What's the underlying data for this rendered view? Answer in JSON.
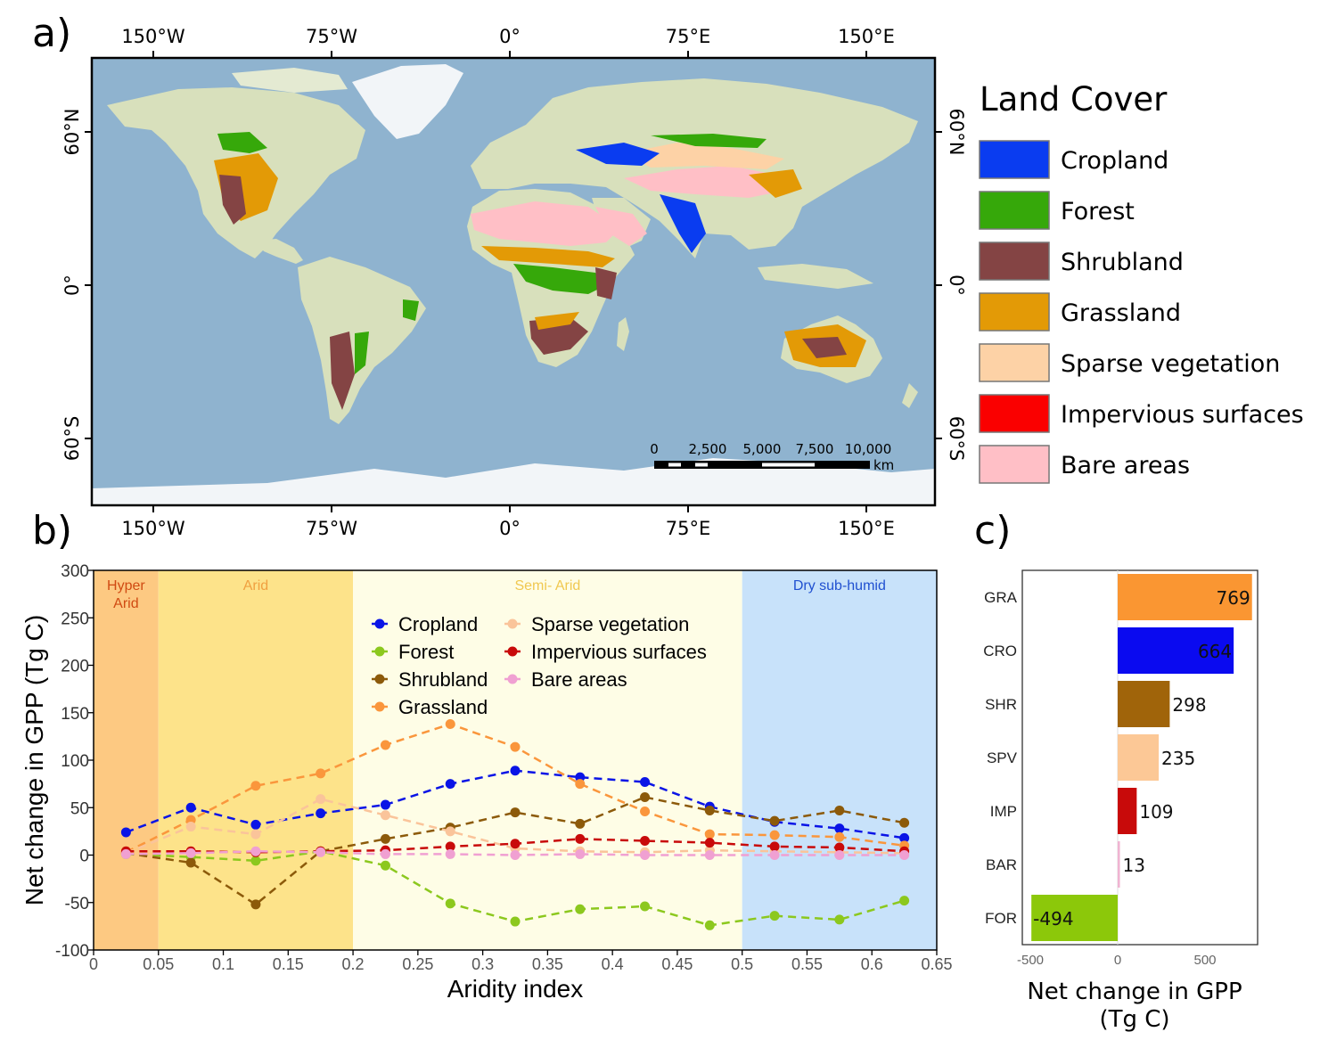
{
  "panel_labels": {
    "a": "a)",
    "b": "b)",
    "c": "c)"
  },
  "map": {
    "lon_ticks": [
      "150°W",
      "75°W",
      "0°",
      "75°E",
      "150°E"
    ],
    "lat_ticks": [
      "60°N",
      "0°",
      "60°S"
    ],
    "scale_bar": {
      "labels": [
        "0",
        "2,500",
        "5,000",
        "7,500",
        "10,000"
      ],
      "unit": "km"
    },
    "legend": {
      "title": "Land Cover",
      "items": [
        {
          "label": "Cropland",
          "color": "#0a3cf0"
        },
        {
          "label": "Forest",
          "color": "#36a80a"
        },
        {
          "label": "Shrubland",
          "color": "#844444"
        },
        {
          "label": "Grassland",
          "color": "#e39a06"
        },
        {
          "label": "Sparse vegetation",
          "color": "#fdd2a6"
        },
        {
          "label": "Impervious surfaces",
          "color": "#fa0000"
        },
        {
          "label": "Bare areas",
          "color": "#ffbfc6"
        }
      ]
    },
    "colors": {
      "ocean": "#8fb3cf",
      "land": "#d8e0bc",
      "ice": "#f2f5f8"
    }
  },
  "chart_data": [
    {
      "type": "line",
      "xlabel": "Aridity index",
      "ylabel": "Net change in GPP (Tg C)",
      "xlim": [
        0,
        0.65
      ],
      "ylim": [
        -100,
        300
      ],
      "xticks": [
        "0",
        "0.05",
        "0.1",
        "0.15",
        "0.2",
        "0.25",
        "0.3",
        "0.35",
        "0.4",
        "0.45",
        "0.5",
        "0.55",
        "0.6",
        "0.65"
      ],
      "yticks": [
        "-100",
        "-50",
        "0",
        "50",
        "100",
        "150",
        "200",
        "250",
        "300"
      ],
      "zones": [
        {
          "label": "Hyper\nArid",
          "lines": [
            "Hyper",
            "Arid"
          ],
          "from": 0,
          "to": 0.05,
          "fill": "#fdc982",
          "text_color": "#d04a12"
        },
        {
          "label": "Arid",
          "lines": [
            "Arid"
          ],
          "from": 0.05,
          "to": 0.2,
          "fill": "#fde38a",
          "text_color": "#f0a040"
        },
        {
          "label": "Semi- Arid",
          "lines": [
            "Semi- Arid"
          ],
          "from": 0.2,
          "to": 0.5,
          "fill": "#fefde6",
          "text_color": "#f0c850"
        },
        {
          "label": "Dry sub-humid",
          "lines": [
            "Dry sub-humid"
          ],
          "from": 0.5,
          "to": 0.65,
          "fill": "#c8e2fa",
          "text_color": "#2050d0"
        }
      ],
      "x": [
        0.025,
        0.075,
        0.125,
        0.175,
        0.225,
        0.275,
        0.325,
        0.375,
        0.425,
        0.475,
        0.525,
        0.575,
        0.625
      ],
      "series": [
        {
          "name": "Cropland",
          "color": "#0a14e6",
          "values": [
            24,
            50,
            32,
            44,
            53,
            75,
            89,
            82,
            77,
            51,
            35,
            28,
            18
          ]
        },
        {
          "name": "Forest",
          "color": "#8cc81e",
          "values": [
            1,
            -2,
            -6,
            4,
            -11,
            -51,
            -70,
            -57,
            -54,
            -74,
            -64,
            -68,
            -48
          ]
        },
        {
          "name": "Shrubland",
          "color": "#8c5a0a",
          "values": [
            2,
            -8,
            -52,
            4,
            17,
            29,
            45,
            33,
            61,
            47,
            36,
            47,
            34
          ]
        },
        {
          "name": "Grassland",
          "color": "#fa963c",
          "values": [
            3,
            37,
            73,
            86,
            116,
            138,
            114,
            75,
            46,
            22,
            21,
            19,
            10
          ]
        },
        {
          "name": "Sparse vegetation",
          "color": "#fac49a",
          "values": [
            2,
            30,
            22,
            59,
            42,
            25,
            7,
            4,
            3,
            5,
            4,
            3,
            2
          ]
        },
        {
          "name": "Impervious surfaces",
          "color": "#c80a0a",
          "values": [
            4,
            4,
            3,
            4,
            5,
            9,
            12,
            17,
            15,
            13,
            9,
            8,
            4
          ]
        },
        {
          "name": "Bare areas",
          "color": "#f0a0d2",
          "values": [
            1,
            2,
            4,
            3,
            1,
            1,
            0,
            1,
            0,
            0,
            0,
            0,
            0
          ]
        }
      ]
    },
    {
      "type": "bar",
      "orientation": "horizontal",
      "xlabel": "Net change in GPP\n(Tg C)",
      "xlabel_lines": [
        "Net change in GPP",
        "(Tg C)"
      ],
      "xlim": [
        -500,
        800
      ],
      "xticks": [
        "-500",
        "0",
        "500"
      ],
      "categories": [
        "GRA",
        "CRO",
        "SHR",
        "SPV",
        "IMP",
        "BAR",
        "FOR"
      ],
      "values": [
        769,
        664,
        298,
        235,
        109,
        13,
        -494
      ],
      "value_labels": [
        "769",
        "664",
        "298",
        "235",
        "109",
        "13",
        "-494"
      ],
      "colors": [
        "#fa9632",
        "#0a0af0",
        "#a0640a",
        "#fcc896",
        "#c80a0a",
        "#f0b4d2",
        "#8cc80a"
      ]
    }
  ]
}
